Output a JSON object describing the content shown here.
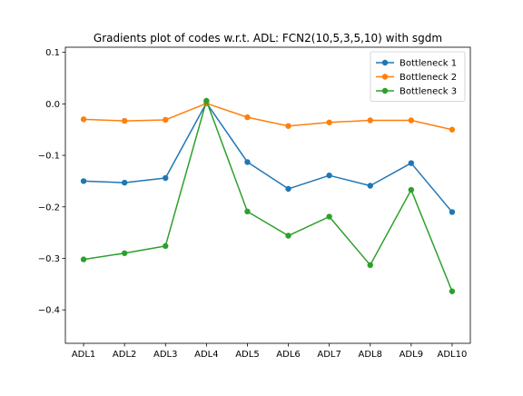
{
  "chart_data": {
    "type": "line",
    "title": "Gradients plot of codes w.r.t. ADL: FCN2(10,5,3,5,10) with sgdm",
    "xlabel": "",
    "ylabel": "",
    "categories": [
      "ADL1",
      "ADL2",
      "ADL3",
      "ADL4",
      "ADL5",
      "ADL6",
      "ADL7",
      "ADL8",
      "ADL9",
      "ADL10"
    ],
    "ylim": [
      -0.465,
      0.11
    ],
    "yticks": [
      0.1,
      0.0,
      -0.1,
      -0.2,
      -0.3,
      -0.4
    ],
    "ytick_labels": [
      "0.1",
      "0.0",
      "−0.1",
      "−0.2",
      "−0.3",
      "−0.4"
    ],
    "grid": false,
    "legend_position": "top-right",
    "marker": "circle",
    "series": [
      {
        "name": "Bottleneck 1",
        "color": "#1f77b4",
        "values": [
          -0.15,
          -0.153,
          -0.144,
          0.002,
          -0.113,
          -0.165,
          -0.139,
          -0.159,
          -0.115,
          -0.21
        ]
      },
      {
        "name": "Bottleneck 2",
        "color": "#ff7f0e",
        "values": [
          -0.03,
          -0.033,
          -0.031,
          0.001,
          -0.026,
          -0.043,
          -0.036,
          -0.032,
          -0.032,
          -0.05
        ]
      },
      {
        "name": "Bottleneck 3",
        "color": "#2ca02c",
        "values": [
          -0.302,
          -0.29,
          -0.276,
          0.006,
          -0.209,
          -0.256,
          -0.219,
          -0.313,
          -0.167,
          -0.364
        ]
      }
    ]
  }
}
